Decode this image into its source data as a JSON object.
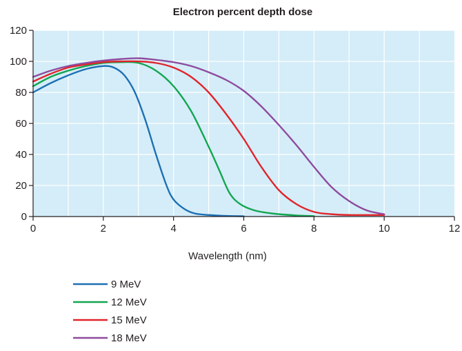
{
  "chart_data": {
    "type": "line",
    "title": "Electron percent depth dose",
    "xlabel": "Wavelength (nm)",
    "ylabel": "",
    "xlim": [
      0,
      12
    ],
    "ylim": [
      0,
      120
    ],
    "xticks": [
      "0",
      "2",
      "4",
      "6",
      "8",
      "10",
      "12"
    ],
    "yticks": [
      "0",
      "20",
      "40",
      "60",
      "80",
      "100",
      "120"
    ],
    "grid": true,
    "legend_position": "bottom-left",
    "background_color": "#d4edf8",
    "series": [
      {
        "name": "9 MeV",
        "color": "#1d6fb3",
        "points": [
          [
            0,
            80
          ],
          [
            0.5,
            86
          ],
          [
            1,
            91
          ],
          [
            1.5,
            95
          ],
          [
            2,
            97
          ],
          [
            2.3,
            96
          ],
          [
            2.6,
            91
          ],
          [
            2.9,
            80
          ],
          [
            3.2,
            62
          ],
          [
            3.5,
            40
          ],
          [
            3.8,
            20
          ],
          [
            4,
            11
          ],
          [
            4.3,
            5
          ],
          [
            4.6,
            2
          ],
          [
            5,
            1
          ],
          [
            5.5,
            0.4
          ],
          [
            6,
            0.2
          ]
        ]
      },
      {
        "name": "12 MeV",
        "color": "#13a550",
        "points": [
          [
            0,
            84
          ],
          [
            0.5,
            90
          ],
          [
            1,
            94
          ],
          [
            1.5,
            97
          ],
          [
            2,
            99
          ],
          [
            2.5,
            99.5
          ],
          [
            3,
            99
          ],
          [
            3.5,
            94
          ],
          [
            4,
            84
          ],
          [
            4.5,
            68
          ],
          [
            5,
            45
          ],
          [
            5.3,
            30
          ],
          [
            5.6,
            15
          ],
          [
            5.9,
            8
          ],
          [
            6.3,
            4
          ],
          [
            6.8,
            2
          ],
          [
            7.5,
            0.7
          ],
          [
            8,
            0.3
          ]
        ]
      },
      {
        "name": "15 MeV",
        "color": "#e1242b",
        "points": [
          [
            0,
            87
          ],
          [
            0.5,
            92
          ],
          [
            1,
            96
          ],
          [
            1.5,
            98
          ],
          [
            2,
            99.5
          ],
          [
            2.5,
            100
          ],
          [
            3,
            100
          ],
          [
            3.5,
            99
          ],
          [
            4,
            96
          ],
          [
            4.5,
            90
          ],
          [
            5,
            80
          ],
          [
            5.5,
            66
          ],
          [
            6,
            50
          ],
          [
            6.5,
            32
          ],
          [
            7,
            17
          ],
          [
            7.5,
            8
          ],
          [
            8,
            3
          ],
          [
            8.5,
            1.5
          ],
          [
            9,
            1
          ],
          [
            10,
            1
          ]
        ]
      },
      {
        "name": "18 MeV",
        "color": "#8e4a9e",
        "points": [
          [
            0,
            90
          ],
          [
            0.5,
            94
          ],
          [
            1,
            97
          ],
          [
            1.5,
            99
          ],
          [
            2,
            100.5
          ],
          [
            2.5,
            101.5
          ],
          [
            3,
            102
          ],
          [
            3.5,
            101
          ],
          [
            4,
            99.5
          ],
          [
            4.5,
            97
          ],
          [
            5,
            93
          ],
          [
            5.5,
            88
          ],
          [
            6,
            81
          ],
          [
            6.5,
            71
          ],
          [
            7,
            59
          ],
          [
            7.5,
            46
          ],
          [
            8,
            32
          ],
          [
            8.5,
            19
          ],
          [
            9,
            10
          ],
          [
            9.5,
            4
          ],
          [
            10,
            1.5
          ]
        ]
      }
    ]
  }
}
